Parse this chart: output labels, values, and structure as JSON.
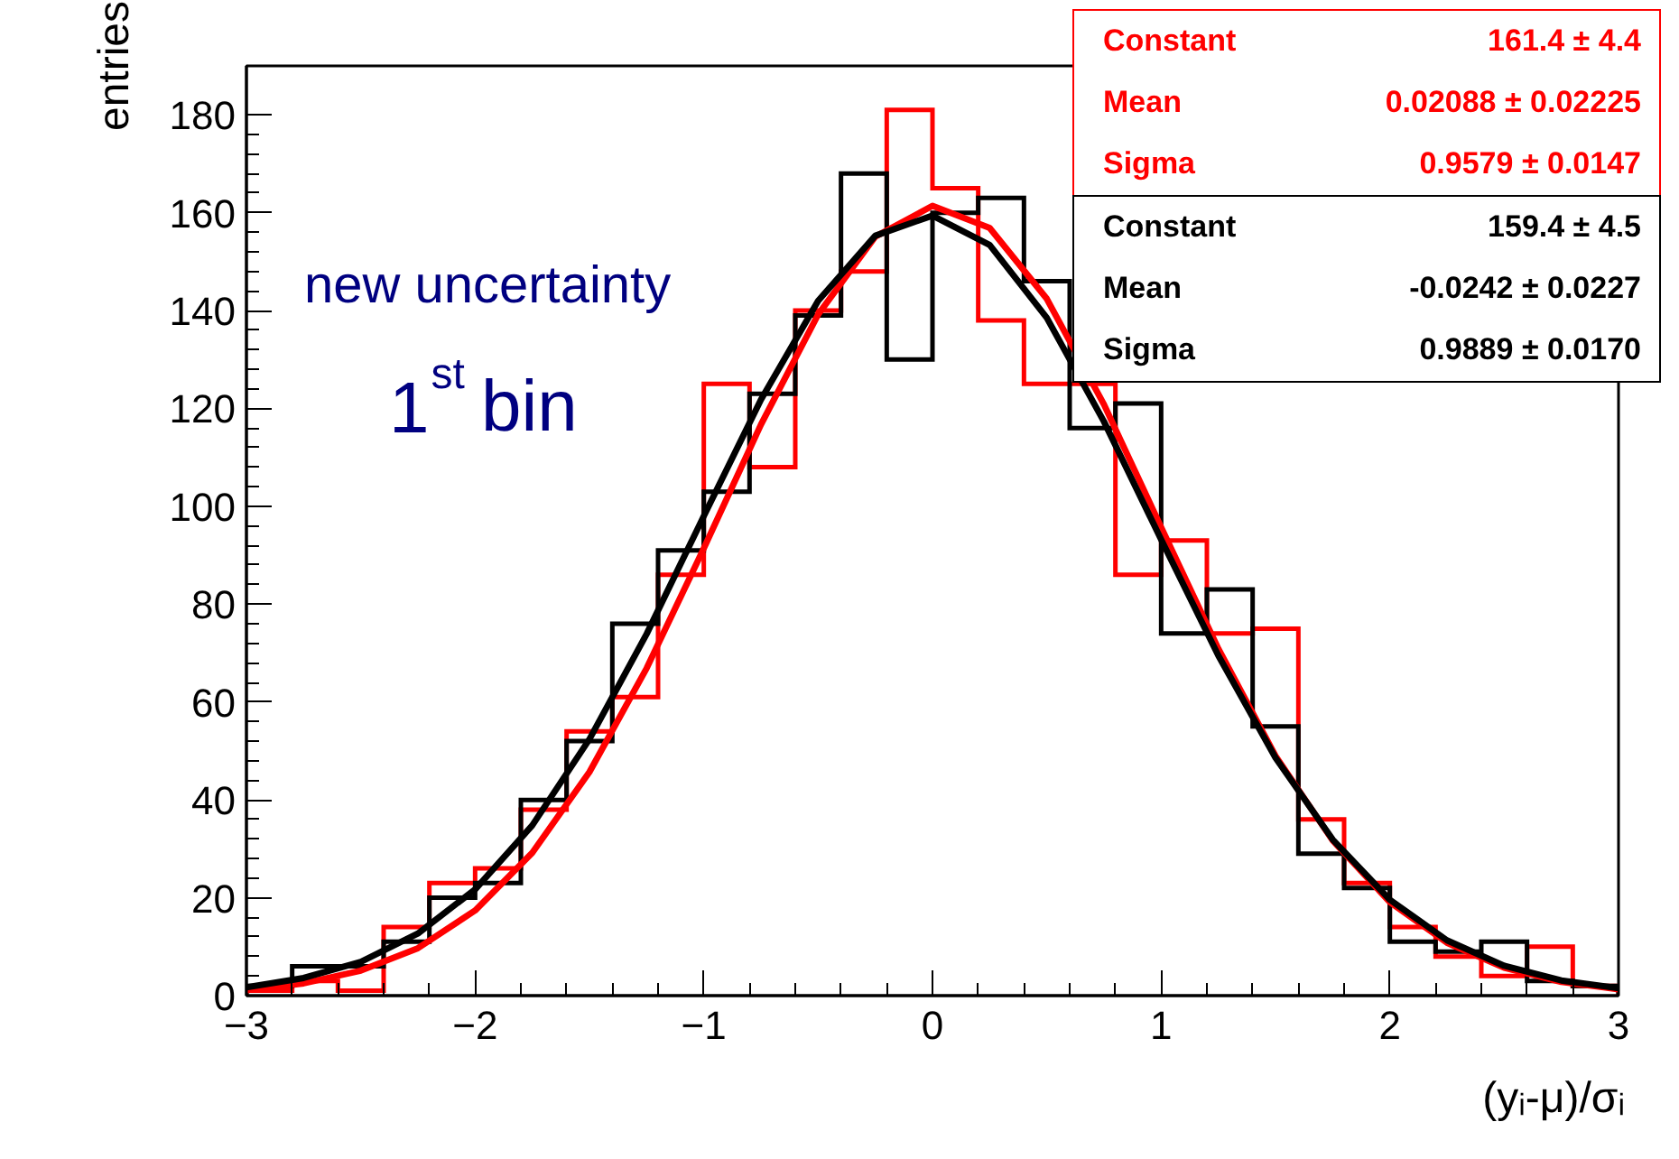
{
  "chart_data": {
    "type": "histogram",
    "xlabel": "(yᵢ-μ)/σᵢ",
    "ylabel": "entries",
    "annotations": [
      "new uncertainty",
      "1$^{st}$ bin",
      "Constant",
      "161.4 ± 4.4",
      "Mean",
      "0.02088 ± 0.02225",
      "Sigma",
      "0.9579 ± 0.0147",
      "Constant",
      "159.4 ± 4.5",
      "Mean",
      "-0.0242 ± 0.0227",
      "Sigma",
      "0.9889 ± 0.0170"
    ],
    "bins": [
      -3.0,
      -2.8,
      -2.6,
      -2.4,
      -2.2,
      -2.0,
      -1.8,
      -1.6,
      -1.4,
      -1.2,
      -1.0,
      -0.8,
      -0.6,
      -0.4,
      -0.2,
      0.0,
      0.2,
      0.4,
      0.6,
      0.8,
      1.0,
      1.2,
      1.4,
      1.6,
      1.8,
      2.0,
      2.2,
      2.4,
      2.6,
      2.8,
      3.0
    ],
    "series": [
      {
        "color": "#ff0000",
        "values": [
          1,
          3,
          1,
          14,
          23,
          26,
          38,
          54,
          61,
          86,
          125,
          108,
          140,
          148,
          181,
          165,
          138,
          125,
          125,
          86,
          93,
          74,
          75,
          36,
          23,
          14,
          8,
          4,
          10,
          2
        ]
      },
      {
        "color": "#000000",
        "values": [
          2,
          6,
          6,
          11,
          20,
          23,
          40,
          52,
          76,
          91,
          103,
          123,
          139,
          168,
          130,
          160,
          163,
          146,
          116,
          121,
          74,
          83,
          55,
          29,
          22,
          11,
          9,
          11,
          3,
          2
        ]
      },
      {
        "type": "line",
        "color": "#ff0000",
        "x": [
          -3,
          -2.75,
          -2.5,
          -2.25,
          -2,
          -1.75,
          -1.5,
          -1.25,
          -1,
          -0.75,
          -0.5,
          -0.25,
          0,
          0.25,
          0.5,
          0.75,
          1,
          1.25,
          1.5,
          1.75,
          2,
          2.25,
          2.5,
          2.75,
          3
        ],
        "values": [
          1.1,
          2.5,
          5.1,
          9.7,
          17.4,
          29.2,
          45.7,
          66.9,
          91.4,
          116.7,
          139.2,
          155.1,
          161.4,
          156.9,
          142.4,
          120.8,
          95.7,
          70.9,
          49.0,
          31.7,
          19.1,
          10.8,
          5.7,
          2.8,
          1.3
        ]
      },
      {
        "type": "line",
        "color": "#000000",
        "x": [
          -3,
          -2.75,
          -2.5,
          -2.25,
          -2,
          -1.75,
          -1.5,
          -1.25,
          -1,
          -0.75,
          -0.5,
          -0.25,
          0,
          0.25,
          0.5,
          0.75,
          1,
          1.25,
          1.5,
          1.75,
          2,
          2.25,
          2.5,
          2.75,
          3
        ],
        "values": [
          1.7,
          3.6,
          6.9,
          12.7,
          21.7,
          34.8,
          52.4,
          73.9,
          98.0,
          121.8,
          142.0,
          155.3,
          159.4,
          153.4,
          138.5,
          117.3,
          93.2,
          69.5,
          48.6,
          31.9,
          19.6,
          11.3,
          6.1,
          3.1,
          1.5
        ]
      }
    ],
    "xlim": [
      -3,
      3
    ],
    "ylim": [
      0,
      190
    ],
    "xticks": [
      -3,
      -2,
      -1,
      0,
      1,
      2,
      3
    ],
    "yticks": [
      0,
      20,
      40,
      60,
      80,
      100,
      120,
      140,
      160,
      180
    ],
    "grid": false
  }
}
